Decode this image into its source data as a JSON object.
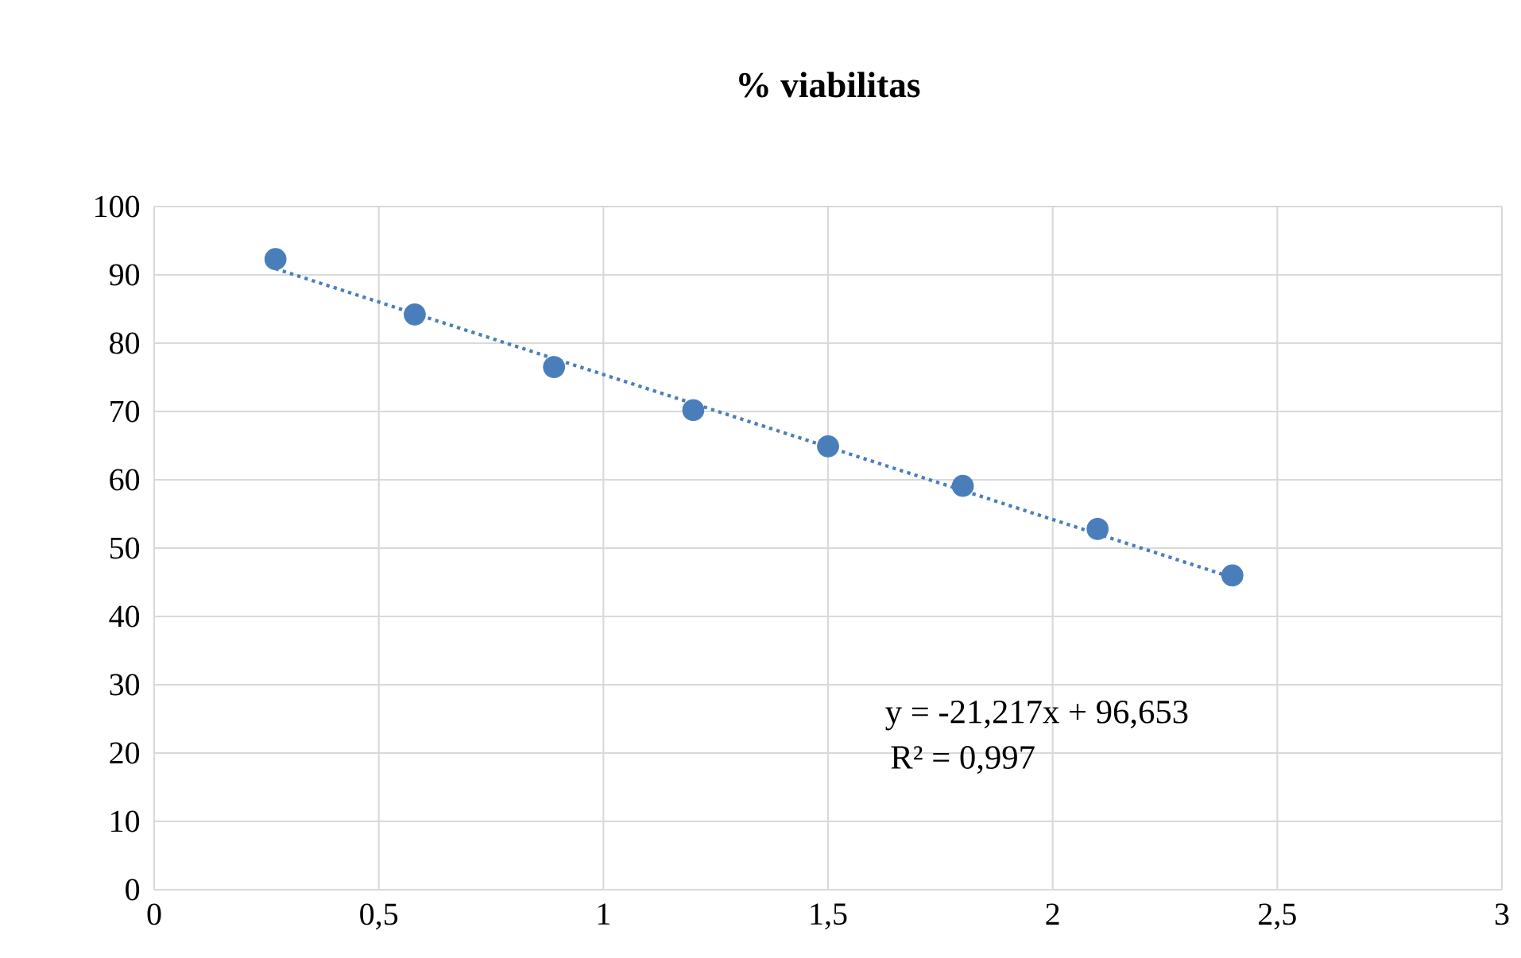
{
  "chart_data": {
    "type": "scatter",
    "title": "% viabilitas",
    "x": [
      0.27,
      0.58,
      0.89,
      1.2,
      1.5,
      1.8,
      2.1,
      2.4
    ],
    "series": [
      {
        "color": "#4a7ebb",
        "values": [
          92.3,
          84.2,
          76.5,
          70.2,
          64.9,
          59.1,
          52.8,
          46.0
        ],
        "marker": "circle"
      },
      {
        "type": "line",
        "color": "#4a7ebb",
        "x": [
          0.27,
          2.4
        ],
        "values": [
          90.9,
          45.7
        ],
        "line_style": "dotted",
        "marker": "none"
      }
    ],
    "xlim": [
      0,
      3
    ],
    "ylim": [
      0,
      100
    ],
    "xticks": [
      0,
      {
        "value": 0.5,
        "label": "0,5"
      },
      1,
      {
        "value": 1.5,
        "label": "1,5"
      },
      2,
      {
        "value": 2.5,
        "label": "2,5"
      },
      3
    ],
    "yticks": [
      0,
      10,
      20,
      30,
      40,
      50,
      60,
      70,
      80,
      90,
      100
    ],
    "grid": true,
    "annotations": [
      "y = -21,217x + 96,653",
      "R² = 0,997"
    ]
  }
}
